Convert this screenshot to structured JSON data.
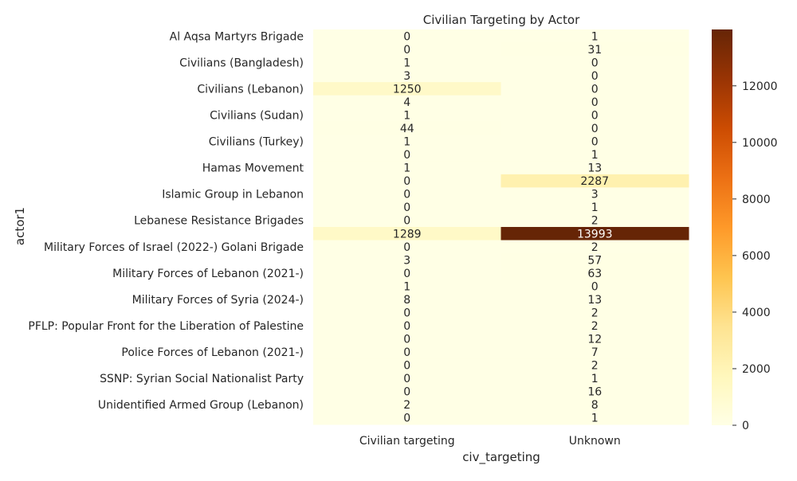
{
  "chart_data": {
    "type": "heatmap",
    "title": "Civilian Targeting by Actor",
    "xlabel": "civ_targeting",
    "ylabel": "actor1",
    "columns": [
      "Civilian targeting",
      "Unknown"
    ],
    "rows": [
      {
        "label": "Al Aqsa Martyrs Brigade",
        "values": [
          0,
          1
        ]
      },
      {
        "label": "",
        "values": [
          0,
          31
        ]
      },
      {
        "label": "Civilians (Bangladesh)",
        "values": [
          1,
          0
        ]
      },
      {
        "label": "",
        "values": [
          3,
          0
        ]
      },
      {
        "label": "Civilians (Lebanon)",
        "values": [
          1250,
          0
        ]
      },
      {
        "label": "",
        "values": [
          4,
          0
        ]
      },
      {
        "label": "Civilians (Sudan)",
        "values": [
          1,
          0
        ]
      },
      {
        "label": "",
        "values": [
          44,
          0
        ]
      },
      {
        "label": "Civilians (Turkey)",
        "values": [
          1,
          0
        ]
      },
      {
        "label": "",
        "values": [
          0,
          1
        ]
      },
      {
        "label": "Hamas Movement",
        "values": [
          1,
          13
        ]
      },
      {
        "label": "",
        "values": [
          0,
          2287
        ]
      },
      {
        "label": "Islamic Group in Lebanon",
        "values": [
          0,
          3
        ]
      },
      {
        "label": "",
        "values": [
          0,
          1
        ]
      },
      {
        "label": "Lebanese Resistance Brigades",
        "values": [
          0,
          2
        ]
      },
      {
        "label": "",
        "values": [
          1289,
          13993
        ]
      },
      {
        "label": "Military Forces of Israel (2022-) Golani Brigade",
        "values": [
          0,
          2
        ]
      },
      {
        "label": "",
        "values": [
          3,
          57
        ]
      },
      {
        "label": "Military Forces of Lebanon (2021-)",
        "values": [
          0,
          63
        ]
      },
      {
        "label": "",
        "values": [
          1,
          0
        ]
      },
      {
        "label": "Military Forces of Syria (2024-)",
        "values": [
          8,
          13
        ]
      },
      {
        "label": "",
        "values": [
          0,
          2
        ]
      },
      {
        "label": "PFLP: Popular Front for the Liberation of Palestine",
        "values": [
          0,
          2
        ]
      },
      {
        "label": "",
        "values": [
          0,
          12
        ]
      },
      {
        "label": "Police Forces of Lebanon (2021-)",
        "values": [
          0,
          7
        ]
      },
      {
        "label": "",
        "values": [
          0,
          2
        ]
      },
      {
        "label": "SSNP: Syrian Social Nationalist Party",
        "values": [
          0,
          1
        ]
      },
      {
        "label": "",
        "values": [
          0,
          16
        ]
      },
      {
        "label": "Unidentified Armed Group (Lebanon)",
        "values": [
          2,
          8
        ]
      },
      {
        "label": "",
        "values": [
          0,
          1
        ]
      }
    ],
    "colorbar": {
      "min": 0,
      "max": 13993,
      "ticks": [
        0,
        2000,
        4000,
        6000,
        8000,
        10000,
        12000
      ],
      "colormap": "YlOrBr",
      "stops": [
        "#ffffe5",
        "#fff7bc",
        "#fee391",
        "#fec44f",
        "#fe9929",
        "#ec7014",
        "#cc4c02",
        "#993404",
        "#662506"
      ]
    },
    "grid": false
  }
}
